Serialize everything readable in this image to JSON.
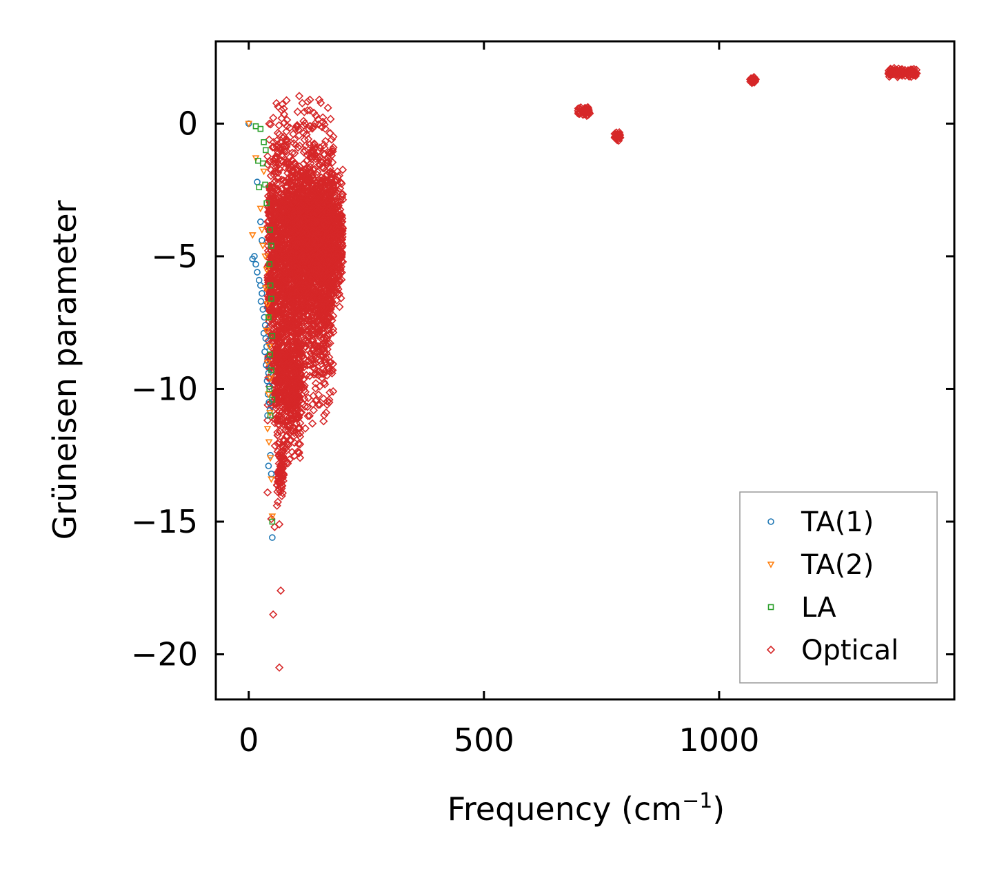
{
  "chart_data": {
    "type": "scatter",
    "xlabel": "Frequency (cm",
    "xlabel_sup": "−1",
    "xlabel_suffix": ")",
    "ylabel": "Grüneisen parameter",
    "xlim": [
      -70,
      1500
    ],
    "ylim": [
      -21.7,
      3.1
    ],
    "xticks": [
      0,
      500,
      1000
    ],
    "xtick_labels": [
      "0",
      "500",
      "1000"
    ],
    "yticks": [
      0,
      -5,
      -10,
      -15,
      -20
    ],
    "ytick_labels": [
      "0",
      "−5",
      "−10",
      "−15",
      "−20"
    ],
    "legend_position": "lower-right",
    "series": [
      {
        "name": "TA(1)",
        "marker": "circle",
        "color": "#1f77b4",
        "points": [
          [
            0,
            0
          ],
          [
            18,
            -2.2
          ],
          [
            8,
            -5.1
          ],
          [
            12,
            -5
          ],
          [
            15,
            -5.3
          ],
          [
            18,
            -5.6
          ],
          [
            22,
            -5.9
          ],
          [
            25,
            -6.1
          ],
          [
            28,
            -6.4
          ],
          [
            26,
            -6.7
          ],
          [
            30,
            -7
          ],
          [
            33,
            -7.3
          ],
          [
            35,
            -7.6
          ],
          [
            32,
            -7.9
          ],
          [
            36,
            -8.1
          ],
          [
            38,
            -8.4
          ],
          [
            34,
            -8.6
          ],
          [
            40,
            -8.9
          ],
          [
            37,
            -9.1
          ],
          [
            42,
            -9.4
          ],
          [
            39,
            -9.7
          ],
          [
            44,
            -9.9
          ],
          [
            41,
            -10.2
          ],
          [
            43,
            -10.5
          ],
          [
            45,
            -10.8
          ],
          [
            40,
            -11
          ],
          [
            46,
            -12.5
          ],
          [
            42,
            -12.9
          ],
          [
            48,
            -13.2
          ],
          [
            50,
            -15.6
          ],
          [
            25,
            -3.7
          ],
          [
            28,
            -4.4
          ]
        ]
      },
      {
        "name": "TA(2)",
        "marker": "triangle-down",
        "color": "#ff7f0e",
        "points": [
          [
            0,
            0
          ],
          [
            15,
            -1.3
          ],
          [
            32,
            -1.8
          ],
          [
            25,
            -3.2
          ],
          [
            8,
            -4.2
          ],
          [
            28,
            -4
          ],
          [
            30,
            -4.6
          ],
          [
            35,
            -5
          ],
          [
            38,
            -5.5
          ],
          [
            36,
            -6.2
          ],
          [
            40,
            -6.8
          ],
          [
            42,
            -7.3
          ],
          [
            38,
            -7.8
          ],
          [
            44,
            -8.4
          ],
          [
            40,
            -9
          ],
          [
            46,
            -9.6
          ],
          [
            42,
            -10.2
          ],
          [
            45,
            -10.9
          ],
          [
            40,
            -11.5
          ],
          [
            43,
            -12
          ],
          [
            46,
            -12.6
          ],
          [
            48,
            -13.4
          ],
          [
            50,
            -14.8
          ]
        ]
      },
      {
        "name": "LA",
        "marker": "square",
        "color": "#2ca02c",
        "points": [
          [
            15,
            -0.1
          ],
          [
            25,
            -0.2
          ],
          [
            32,
            -0.7
          ],
          [
            36,
            -1
          ],
          [
            20,
            -1.4
          ],
          [
            30,
            -1.5
          ],
          [
            22,
            -2.4
          ],
          [
            35,
            -2.3
          ],
          [
            38,
            -3
          ],
          [
            45,
            -4
          ],
          [
            48,
            -4.6
          ],
          [
            44,
            -5.3
          ],
          [
            46,
            -6.1
          ],
          [
            48,
            -6.6
          ],
          [
            42,
            -7.3
          ],
          [
            50,
            -8
          ],
          [
            45,
            -8.7
          ],
          [
            48,
            -9.3
          ],
          [
            44,
            -10
          ],
          [
            50,
            -10.4
          ],
          [
            46,
            -11
          ],
          [
            50,
            -15
          ]
        ]
      },
      {
        "name": "Optical",
        "marker": "diamond",
        "color": "#d62728",
        "clusters": [
          {
            "x": [
              40,
              180
            ],
            "y": [
              -9.5,
              -0.8
            ],
            "count": 2400
          },
          {
            "x": [
              90,
              200
            ],
            "y": [
              -6.2,
              -2.3
            ],
            "count": 1200
          },
          {
            "x": [
              55,
              110
            ],
            "y": [
              -12.0,
              -7.5
            ],
            "count": 500
          },
          {
            "x": [
              60,
              75
            ],
            "y": [
              -14.2,
              -12.0
            ],
            "count": 70
          },
          {
            "x": [
              700,
              725
            ],
            "y": [
              0.3,
              0.6
            ],
            "count": 40
          },
          {
            "x": [
              778,
              790
            ],
            "y": [
              -0.6,
              -0.35
            ],
            "count": 30
          },
          {
            "x": [
              1066,
              1078
            ],
            "y": [
              1.5,
              1.75
            ],
            "count": 30
          },
          {
            "x": [
              1360,
              1420
            ],
            "y": [
              1.8,
              2.05
            ],
            "count": 120
          }
        ],
        "points": [
          [
            70,
            0.5
          ],
          [
            70,
            0.2
          ],
          [
            65,
            -0.4
          ],
          [
            75,
            -0.8
          ],
          [
            80,
            -0.3
          ],
          [
            100,
            -0.2
          ],
          [
            105,
            -0.9
          ],
          [
            125,
            0.5
          ],
          [
            130,
            0.9
          ],
          [
            130,
            -0.1
          ],
          [
            150,
            0.9
          ],
          [
            160,
            -0.8
          ],
          [
            170,
            -1.1
          ],
          [
            180,
            -0.9
          ],
          [
            48,
            -14.9
          ],
          [
            55,
            -15.2
          ],
          [
            65,
            -15.1
          ],
          [
            68,
            -17.6
          ],
          [
            52,
            -18.5
          ],
          [
            65,
            -20.5
          ],
          [
            40,
            -13.9
          ],
          [
            105,
            -11.7
          ],
          [
            100,
            -11.1
          ],
          [
            110,
            -10.9
          ],
          [
            60,
            -14.4
          ],
          [
            190,
            -5.7
          ]
        ]
      }
    ]
  }
}
